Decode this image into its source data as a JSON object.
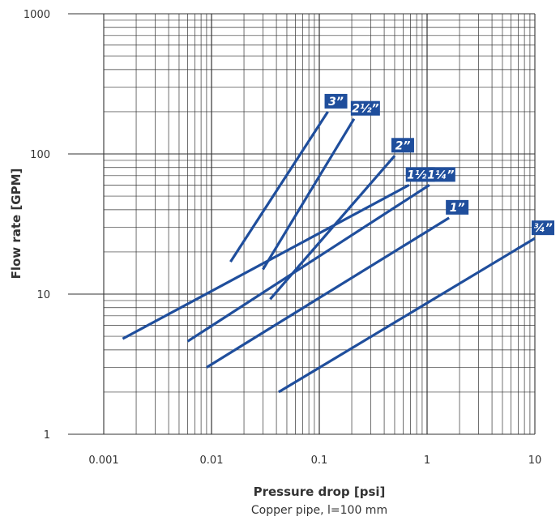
{
  "chart_data": {
    "type": "line",
    "title": "",
    "xlabel": "Pressure drop [psi]",
    "subtitle": "Copper pipe, l=100 mm",
    "ylabel": "Flow rate [GPM]",
    "x_scale": "log",
    "y_scale": "log",
    "xlim": [
      0.001,
      10
    ],
    "ylim": [
      1,
      1000
    ],
    "x_ticks": [
      0.001,
      0.01,
      0.1,
      1,
      10
    ],
    "x_tick_labels": [
      "0.001",
      "0.01",
      "0.1",
      "1",
      "10"
    ],
    "y_ticks": [
      1,
      10,
      100,
      1000
    ],
    "y_tick_labels": [
      "1",
      "10",
      "100",
      "1000"
    ],
    "grid": true,
    "legend": "inline labels at line ends",
    "series": [
      {
        "name": "3”",
        "x": [
          0.015,
          0.12
        ],
        "y": [
          17,
          200
        ]
      },
      {
        "name": "2½”",
        "x": [
          0.03,
          0.21
        ],
        "y": [
          15,
          178
        ]
      },
      {
        "name": "2”",
        "x": [
          0.035,
          0.5
        ],
        "y": [
          9.2,
          97
        ]
      },
      {
        "name": "1½”",
        "x": [
          0.0015,
          0.68
        ],
        "y": [
          4.8,
          60
        ]
      },
      {
        "name": "1¼”",
        "x": [
          0.006,
          1.05
        ],
        "y": [
          4.6,
          60
        ]
      },
      {
        "name": "1”",
        "x": [
          0.009,
          1.6
        ],
        "y": [
          3.0,
          35
        ]
      },
      {
        "name": "¾”",
        "x": [
          0.042,
          10
        ],
        "y": [
          2.0,
          25
        ]
      }
    ]
  },
  "colors": {
    "line": "#1f4e9c",
    "label_bg": "#1f4e9c",
    "grid": "#333333",
    "text": "#333333"
  }
}
